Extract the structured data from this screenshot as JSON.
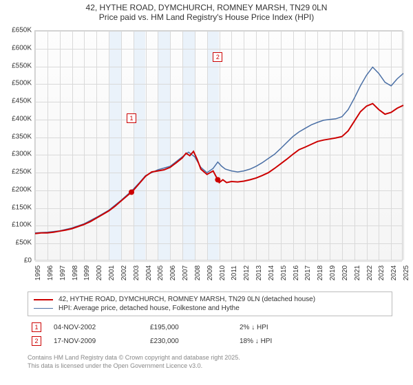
{
  "title": {
    "line1": "42, HYTHE ROAD, DYMCHURCH, ROMNEY MARSH, TN29 0LN",
    "line2": "Price paid vs. HM Land Registry's House Price Index (HPI)"
  },
  "chart": {
    "type": "line",
    "background_gradient": [
      "#fdfdfd",
      "#f5f5f5"
    ],
    "grid_color": "#d9d9d9",
    "border_color": "#cccccc",
    "ylabel_fontsize": 10,
    "xlabel_fontsize": 10,
    "ylim": [
      0,
      650000
    ],
    "ytick_step": 50000,
    "ytick_labels": [
      "£0",
      "£50K",
      "£100K",
      "£150K",
      "£200K",
      "£250K",
      "£300K",
      "£350K",
      "£400K",
      "£450K",
      "£500K",
      "£550K",
      "£600K",
      "£650K"
    ],
    "xlim": [
      1995,
      2025
    ],
    "xtick_step": 1,
    "xtick_labels": [
      "1995",
      "1996",
      "1997",
      "1998",
      "1999",
      "2000",
      "2001",
      "2002",
      "2003",
      "2004",
      "2005",
      "2006",
      "2007",
      "2008",
      "2009",
      "2010",
      "2011",
      "2012",
      "2013",
      "2014",
      "2015",
      "2016",
      "2017",
      "2018",
      "2019",
      "2020",
      "2021",
      "2022",
      "2023",
      "2024",
      "2025"
    ],
    "shaded_bands": [
      {
        "from_year": 2001.0,
        "to_year": 2002.0,
        "color": "#eaf2fa"
      },
      {
        "from_year": 2003.0,
        "to_year": 2004.0,
        "color": "#eaf2fa"
      },
      {
        "from_year": 2005.0,
        "to_year": 2006.0,
        "color": "#eaf2fa"
      },
      {
        "from_year": 2007.0,
        "to_year": 2008.0,
        "color": "#eaf2fa"
      },
      {
        "from_year": 2009.0,
        "to_year": 2010.0,
        "color": "#eaf2fa"
      }
    ],
    "series": [
      {
        "id": "price_paid",
        "label": "42, HYTHE ROAD, DYMCHURCH, ROMNEY MARSH, TN29 0LN (detached house)",
        "color": "#cc0000",
        "line_width": 2,
        "data": [
          [
            1995.0,
            78000
          ],
          [
            1995.5,
            80000
          ],
          [
            1996.0,
            80000
          ],
          [
            1996.5,
            82000
          ],
          [
            1997.0,
            85000
          ],
          [
            1997.5,
            88000
          ],
          [
            1998.0,
            92000
          ],
          [
            1998.5,
            98000
          ],
          [
            1999.0,
            104000
          ],
          [
            1999.5,
            112000
          ],
          [
            2000.0,
            122000
          ],
          [
            2000.5,
            132000
          ],
          [
            2001.0,
            142000
          ],
          [
            2001.5,
            155000
          ],
          [
            2002.0,
            170000
          ],
          [
            2002.5,
            185000
          ],
          [
            2002.85,
            195000
          ],
          [
            2003.0,
            200000
          ],
          [
            2003.5,
            220000
          ],
          [
            2004.0,
            240000
          ],
          [
            2004.5,
            252000
          ],
          [
            2005.0,
            255000
          ],
          [
            2005.5,
            258000
          ],
          [
            2006.0,
            265000
          ],
          [
            2006.5,
            278000
          ],
          [
            2007.0,
            292000
          ],
          [
            2007.3,
            305000
          ],
          [
            2007.6,
            298000
          ],
          [
            2007.9,
            310000
          ],
          [
            2008.2,
            288000
          ],
          [
            2008.5,
            260000
          ],
          [
            2009.0,
            245000
          ],
          [
            2009.5,
            255000
          ],
          [
            2009.88,
            230000
          ],
          [
            2010.0,
            222000
          ],
          [
            2010.3,
            230000
          ],
          [
            2010.6,
            222000
          ],
          [
            2011.0,
            225000
          ],
          [
            2011.5,
            224000
          ],
          [
            2012.0,
            226000
          ],
          [
            2012.5,
            230000
          ],
          [
            2013.0,
            235000
          ],
          [
            2013.5,
            242000
          ],
          [
            2014.0,
            250000
          ],
          [
            2014.5,
            262000
          ],
          [
            2015.0,
            275000
          ],
          [
            2015.5,
            288000
          ],
          [
            2016.0,
            302000
          ],
          [
            2016.5,
            315000
          ],
          [
            2017.0,
            322000
          ],
          [
            2017.5,
            330000
          ],
          [
            2018.0,
            338000
          ],
          [
            2018.5,
            342000
          ],
          [
            2019.0,
            345000
          ],
          [
            2019.5,
            348000
          ],
          [
            2020.0,
            352000
          ],
          [
            2020.5,
            368000
          ],
          [
            2021.0,
            395000
          ],
          [
            2021.5,
            422000
          ],
          [
            2022.0,
            438000
          ],
          [
            2022.5,
            445000
          ],
          [
            2023.0,
            428000
          ],
          [
            2023.5,
            415000
          ],
          [
            2024.0,
            420000
          ],
          [
            2024.5,
            432000
          ],
          [
            2025.0,
            440000
          ]
        ]
      },
      {
        "id": "hpi",
        "label": "HPI: Average price, detached house, Folkestone and Hythe",
        "color": "#4a6fa5",
        "line_width": 1.5,
        "data": [
          [
            1995.0,
            80000
          ],
          [
            1996.0,
            82000
          ],
          [
            1997.0,
            86000
          ],
          [
            1998.0,
            94000
          ],
          [
            1999.0,
            106000
          ],
          [
            2000.0,
            124000
          ],
          [
            2001.0,
            144000
          ],
          [
            2002.0,
            172000
          ],
          [
            2002.85,
            198000
          ],
          [
            2003.5,
            222000
          ],
          [
            2004.0,
            242000
          ],
          [
            2005.0,
            258000
          ],
          [
            2006.0,
            268000
          ],
          [
            2007.0,
            295000
          ],
          [
            2007.5,
            308000
          ],
          [
            2008.0,
            295000
          ],
          [
            2008.5,
            265000
          ],
          [
            2009.0,
            250000
          ],
          [
            2009.5,
            262000
          ],
          [
            2009.88,
            280000
          ],
          [
            2010.2,
            268000
          ],
          [
            2010.5,
            260000
          ],
          [
            2011.0,
            255000
          ],
          [
            2011.5,
            252000
          ],
          [
            2012.0,
            255000
          ],
          [
            2012.5,
            260000
          ],
          [
            2013.0,
            268000
          ],
          [
            2013.5,
            278000
          ],
          [
            2014.0,
            290000
          ],
          [
            2014.5,
            302000
          ],
          [
            2015.0,
            318000
          ],
          [
            2015.5,
            335000
          ],
          [
            2016.0,
            352000
          ],
          [
            2016.5,
            365000
          ],
          [
            2017.0,
            375000
          ],
          [
            2017.5,
            385000
          ],
          [
            2018.0,
            392000
          ],
          [
            2018.5,
            398000
          ],
          [
            2019.0,
            400000
          ],
          [
            2019.5,
            402000
          ],
          [
            2020.0,
            408000
          ],
          [
            2020.5,
            428000
          ],
          [
            2021.0,
            460000
          ],
          [
            2021.5,
            495000
          ],
          [
            2022.0,
            525000
          ],
          [
            2022.5,
            548000
          ],
          [
            2023.0,
            530000
          ],
          [
            2023.5,
            505000
          ],
          [
            2024.0,
            495000
          ],
          [
            2024.5,
            515000
          ],
          [
            2025.0,
            530000
          ]
        ]
      }
    ],
    "sale_markers": [
      {
        "num": "1",
        "year": 2002.85,
        "value": 195000,
        "label_y_offset": -115
      },
      {
        "num": "2",
        "year": 2009.88,
        "value": 230000,
        "label_y_offset": -185
      }
    ]
  },
  "legend": {
    "items": [
      {
        "color": "#cc0000",
        "width": 2,
        "label": "42, HYTHE ROAD, DYMCHURCH, ROMNEY MARSH, TN29 0LN (detached house)"
      },
      {
        "color": "#4a6fa5",
        "width": 1.5,
        "label": "HPI: Average price, detached house, Folkestone and Hythe"
      }
    ]
  },
  "sales": [
    {
      "num": "1",
      "date": "04-NOV-2002",
      "price": "£195,000",
      "diff": "2% ↓ HPI"
    },
    {
      "num": "2",
      "date": "17-NOV-2009",
      "price": "£230,000",
      "diff": "18% ↓ HPI"
    }
  ],
  "footer": {
    "line1": "Contains HM Land Registry data © Crown copyright and database right 2025.",
    "line2": "This data is licensed under the Open Government Licence v3.0."
  }
}
